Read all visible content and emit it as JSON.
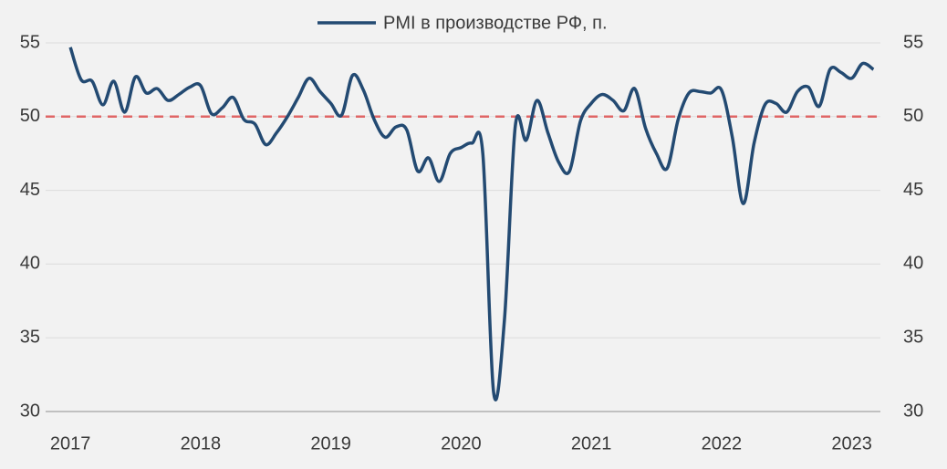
{
  "chart_data": {
    "type": "line",
    "reference_line": {
      "value": 50,
      "color": "#e06666"
    },
    "x": [
      2017,
      2017.083,
      2017.167,
      2017.25,
      2017.333,
      2017.417,
      2017.5,
      2017.583,
      2017.667,
      2017.75,
      2017.833,
      2017.917,
      2018,
      2018.083,
      2018.167,
      2018.25,
      2018.333,
      2018.417,
      2018.5,
      2018.583,
      2018.667,
      2018.75,
      2018.833,
      2018.917,
      2019,
      2019.083,
      2019.167,
      2019.25,
      2019.333,
      2019.417,
      2019.5,
      2019.583,
      2019.667,
      2019.75,
      2019.833,
      2019.917,
      2020,
      2020.083,
      2020.167,
      2020.25,
      2020.333,
      2020.417,
      2020.5,
      2020.583,
      2020.667,
      2020.75,
      2020.833,
      2020.917,
      2021,
      2021.083,
      2021.167,
      2021.25,
      2021.333,
      2021.417,
      2021.5,
      2021.583,
      2021.667,
      2021.75,
      2021.833,
      2021.917,
      2022,
      2022.083,
      2022.167,
      2022.25,
      2022.333,
      2022.417,
      2022.5,
      2022.583,
      2022.667,
      2022.75,
      2022.833,
      2022.917,
      2023,
      2023.083,
      2023.167
    ],
    "series": [
      {
        "name": "PMI в производстве РФ, п.",
        "color": "#234a72",
        "values": [
          54.7,
          52.5,
          52.4,
          50.8,
          52.4,
          50.3,
          52.7,
          51.6,
          51.9,
          51.1,
          51.5,
          52.0,
          52.1,
          50.2,
          50.6,
          51.3,
          49.8,
          49.5,
          48.1,
          48.9,
          50.0,
          51.3,
          52.6,
          51.7,
          50.9,
          50.1,
          52.8,
          51.8,
          49.8,
          48.6,
          49.3,
          49.1,
          46.3,
          47.2,
          45.6,
          47.5,
          47.9,
          48.2,
          47.5,
          31.3,
          36.2,
          49.4,
          48.4,
          51.1,
          48.9,
          46.9,
          46.3,
          49.7,
          50.9,
          51.5,
          51.1,
          50.4,
          51.9,
          49.2,
          47.5,
          46.5,
          49.8,
          51.6,
          51.7,
          51.6,
          51.8,
          48.6,
          44.1,
          48.2,
          50.8,
          50.9,
          50.3,
          51.7,
          52.0,
          50.7,
          53.2,
          53.0,
          52.6,
          53.6,
          53.2
        ]
      }
    ],
    "xlim": [
      2016.81,
      2023.22
    ],
    "xticks": [
      2017,
      2018,
      2019,
      2020,
      2021,
      2022,
      2023
    ],
    "ylim": [
      30,
      55
    ],
    "yticks": [
      30,
      35,
      40,
      45,
      50,
      55
    ],
    "grid": true
  }
}
